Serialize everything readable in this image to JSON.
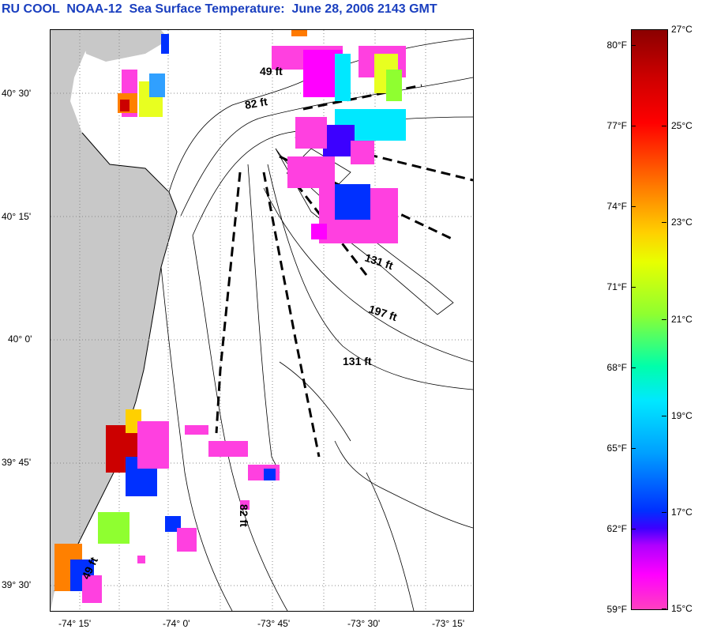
{
  "title": "RU COOL  NOAA-12  Sea Surface Temperature:  June 28, 2006 2143 GMT",
  "lat_labels": [
    "40° 30'",
    "40° 15'",
    "40° 0'",
    "39° 45'",
    "39° 30'"
  ],
  "lon_labels": [
    "-74° 15'",
    "-74° 0'",
    "-73° 45'",
    "-73° 30'",
    "-73° 15'"
  ],
  "contour_labels": {
    "north_49": "49 ft",
    "north_82": "82 ft",
    "shelf_131a": "131 ft",
    "shelf_197": "197 ft",
    "shelf_131b": "131 ft",
    "south_82": "82 ft",
    "south_49": "49 ft"
  },
  "colorbar": {
    "fahrenheit": [
      "80°F",
      "77°F",
      "74°F",
      "71°F",
      "68°F",
      "65°F",
      "62°F",
      "59°F"
    ],
    "celsius": [
      "27°C",
      "25°C",
      "23°C",
      "21°C",
      "19°C",
      "17°C",
      "15°C"
    ]
  },
  "colors": {
    "land": "#c8c8c8",
    "title": "#1a3fbf"
  }
}
